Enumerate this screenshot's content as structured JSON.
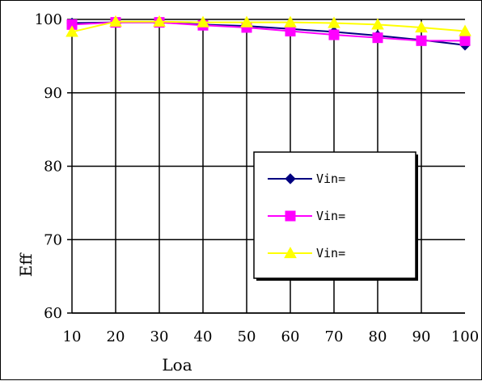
{
  "chart_data": {
    "type": "line",
    "xlabel": "Loa",
    "ylabel": "Eff",
    "x": [
      10,
      20,
      30,
      40,
      50,
      60,
      70,
      80,
      90,
      100
    ],
    "xlim": [
      10,
      100
    ],
    "ylim": [
      60,
      100
    ],
    "x_ticks": [
      10,
      20,
      30,
      40,
      50,
      60,
      70,
      80,
      90,
      100
    ],
    "y_ticks": [
      60,
      70,
      80,
      90,
      100
    ],
    "grid": true,
    "legend_position": "right",
    "series": [
      {
        "name": "Vin=",
        "color": "#000080",
        "marker": "diamond",
        "values": [
          99.5,
          99.6,
          99.6,
          99.3,
          99.1,
          98.7,
          98.3,
          97.8,
          97.2,
          96.5
        ]
      },
      {
        "name": "Vin=",
        "color": "#ff00ff",
        "marker": "square",
        "values": [
          99.3,
          99.6,
          99.6,
          99.2,
          98.9,
          98.4,
          97.9,
          97.5,
          97.1,
          97.1
        ]
      },
      {
        "name": "Vin=",
        "color": "#ffff00",
        "marker": "triangle",
        "values": [
          98.3,
          99.7,
          99.7,
          99.6,
          99.6,
          99.6,
          99.5,
          99.3,
          98.9,
          98.4
        ]
      }
    ]
  }
}
